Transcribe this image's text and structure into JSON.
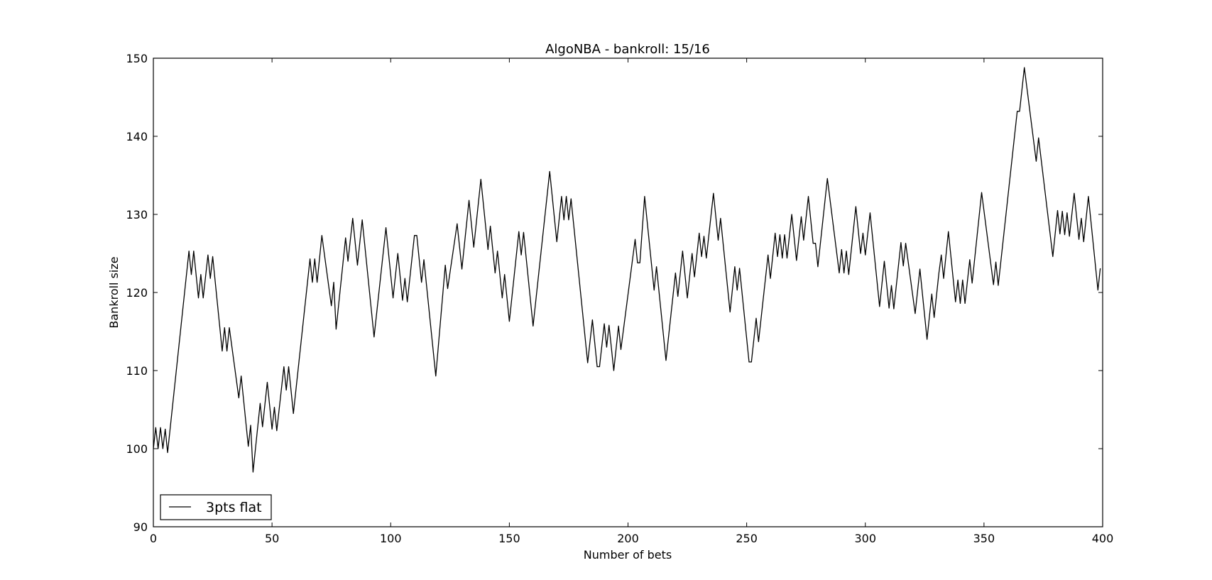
{
  "chart_data": {
    "type": "line",
    "title": "AlgoNBA - bankroll: 15/16",
    "xlabel": "Number of bets",
    "ylabel": "Bankroll size",
    "xlim": [
      0,
      400
    ],
    "ylim": [
      90,
      150
    ],
    "xticks": [
      0,
      50,
      100,
      150,
      200,
      250,
      300,
      350,
      400
    ],
    "yticks": [
      90,
      100,
      110,
      120,
      130,
      140,
      150
    ],
    "grid": false,
    "legend_position": "lower-left",
    "series": [
      {
        "name": "3pts flat",
        "color": "#000000",
        "points": [
          [
            0,
            100
          ],
          [
            1,
            102.7
          ],
          [
            2,
            100
          ],
          [
            3,
            102.7
          ],
          [
            4,
            100
          ],
          [
            5,
            102.5
          ],
          [
            6,
            99.5
          ],
          [
            15,
            125.3
          ],
          [
            16,
            122.3
          ],
          [
            17,
            125.3
          ],
          [
            19,
            119.3
          ],
          [
            20,
            122.3
          ],
          [
            21,
            119.3
          ],
          [
            23,
            124.8
          ],
          [
            24,
            121.8
          ],
          [
            25,
            124.6
          ],
          [
            29,
            112.5
          ],
          [
            30,
            115.5
          ],
          [
            31,
            112.5
          ],
          [
            32,
            115.5
          ],
          [
            36,
            106.5
          ],
          [
            37,
            109.3
          ],
          [
            40,
            100.3
          ],
          [
            41,
            103
          ],
          [
            42,
            97
          ],
          [
            45,
            105.8
          ],
          [
            46,
            102.8
          ],
          [
            48,
            108.5
          ],
          [
            50,
            102.5
          ],
          [
            51,
            105.3
          ],
          [
            52,
            102.3
          ],
          [
            55,
            110.5
          ],
          [
            56,
            107.5
          ],
          [
            57,
            110.5
          ],
          [
            59,
            104.5
          ],
          [
            66,
            124.3
          ],
          [
            67,
            121.3
          ],
          [
            68,
            124.3
          ],
          [
            69,
            121.3
          ],
          [
            71,
            127.3
          ],
          [
            75,
            118.3
          ],
          [
            76,
            121.3
          ],
          [
            77,
            115.3
          ],
          [
            81,
            127
          ],
          [
            82,
            124
          ],
          [
            84,
            129.5
          ],
          [
            86,
            123.5
          ],
          [
            88,
            129.3
          ],
          [
            93,
            114.3
          ],
          [
            98,
            128.3
          ],
          [
            101,
            119.3
          ],
          [
            103,
            125
          ],
          [
            105,
            119
          ],
          [
            106,
            121.8
          ],
          [
            107,
            118.8
          ],
          [
            110,
            127.3
          ],
          [
            111,
            127.3
          ],
          [
            113,
            121.3
          ],
          [
            114,
            124.2
          ],
          [
            119,
            109.3
          ],
          [
            123,
            123.5
          ],
          [
            124,
            120.5
          ],
          [
            128,
            128.8
          ],
          [
            130,
            123
          ],
          [
            133,
            131.8
          ],
          [
            135,
            125.8
          ],
          [
            138,
            134.5
          ],
          [
            141,
            125.5
          ],
          [
            142,
            128.5
          ],
          [
            144,
            122.5
          ],
          [
            145,
            125.3
          ],
          [
            147,
            119.3
          ],
          [
            148,
            122.3
          ],
          [
            150,
            116.3
          ],
          [
            154,
            127.8
          ],
          [
            155,
            124.8
          ],
          [
            156,
            127.7
          ],
          [
            160,
            115.7
          ],
          [
            167,
            135.5
          ],
          [
            170,
            126.5
          ],
          [
            172,
            132.3
          ],
          [
            173,
            129.3
          ],
          [
            174,
            132.3
          ],
          [
            175,
            129.3
          ],
          [
            176,
            132
          ],
          [
            183,
            111
          ],
          [
            185,
            116.5
          ],
          [
            187,
            110.5
          ],
          [
            188,
            110.5
          ],
          [
            190,
            116
          ],
          [
            191,
            113
          ],
          [
            192,
            115.8
          ],
          [
            194,
            110
          ],
          [
            196,
            115.7
          ],
          [
            197,
            112.7
          ],
          [
            203,
            126.8
          ],
          [
            204,
            123.8
          ],
          [
            205,
            123.8
          ],
          [
            207,
            132.3
          ],
          [
            211,
            120.3
          ],
          [
            212,
            123.3
          ],
          [
            216,
            111.3
          ],
          [
            220,
            122.5
          ],
          [
            221,
            119.5
          ],
          [
            223,
            125.3
          ],
          [
            225,
            119.3
          ],
          [
            227,
            125
          ],
          [
            228,
            122
          ],
          [
            230,
            127.6
          ],
          [
            231,
            124.6
          ],
          [
            232,
            127.2
          ],
          [
            233,
            124.4
          ],
          [
            236,
            132.7
          ],
          [
            238,
            126.7
          ],
          [
            239,
            129.5
          ],
          [
            243,
            117.5
          ],
          [
            245,
            123.3
          ],
          [
            246,
            120.3
          ],
          [
            247,
            123.1
          ],
          [
            251,
            111.1
          ],
          [
            252,
            111.1
          ],
          [
            254,
            116.7
          ],
          [
            255,
            113.7
          ],
          [
            259,
            124.8
          ],
          [
            260,
            121.8
          ],
          [
            262,
            127.6
          ],
          [
            263,
            124.6
          ],
          [
            264,
            127.4
          ],
          [
            265,
            124.4
          ],
          [
            266,
            127.4
          ],
          [
            267,
            124.4
          ],
          [
            269,
            130
          ],
          [
            271,
            124.1
          ],
          [
            273,
            129.7
          ],
          [
            274,
            126.7
          ],
          [
            276,
            132.3
          ],
          [
            278,
            126.3
          ],
          [
            279,
            126.3
          ],
          [
            280,
            123.3
          ],
          [
            284,
            134.6
          ],
          [
            289,
            122.5
          ],
          [
            290,
            125.5
          ],
          [
            291,
            122.5
          ],
          [
            292,
            125.3
          ],
          [
            293,
            122.3
          ],
          [
            296,
            131
          ],
          [
            298,
            125
          ],
          [
            299,
            127.6
          ],
          [
            300,
            124.8
          ],
          [
            302,
            130.2
          ],
          [
            306,
            118.2
          ],
          [
            308,
            124
          ],
          [
            310,
            118
          ],
          [
            311,
            120.9
          ],
          [
            312,
            117.9
          ],
          [
            315,
            126.4
          ],
          [
            316,
            123.4
          ],
          [
            317,
            126.3
          ],
          [
            321,
            117.3
          ],
          [
            323,
            123
          ],
          [
            326,
            114
          ],
          [
            328,
            119.8
          ],
          [
            329,
            116.8
          ],
          [
            331,
            122.5
          ],
          [
            332,
            124.8
          ],
          [
            333,
            121.8
          ],
          [
            335,
            127.8
          ],
          [
            338,
            118.8
          ],
          [
            339,
            121.6
          ],
          [
            340,
            118.6
          ],
          [
            341,
            121.6
          ],
          [
            342,
            118.6
          ],
          [
            344,
            124.2
          ],
          [
            345,
            121.2
          ],
          [
            349,
            132.8
          ],
          [
            354,
            121
          ],
          [
            355,
            123.9
          ],
          [
            356,
            120.9
          ],
          [
            364,
            143.2
          ],
          [
            365,
            143.2
          ],
          [
            367,
            148.8
          ],
          [
            372,
            136.8
          ],
          [
            373,
            139.8
          ],
          [
            379,
            124.6
          ],
          [
            381,
            130.5
          ],
          [
            382,
            127.5
          ],
          [
            383,
            130.4
          ],
          [
            384,
            127.4
          ],
          [
            385,
            130.2
          ],
          [
            386,
            127.2
          ],
          [
            388,
            132.7
          ],
          [
            390,
            126.8
          ],
          [
            391,
            129.5
          ],
          [
            392,
            126.5
          ],
          [
            394,
            132.3
          ],
          [
            398,
            120.3
          ],
          [
            399,
            123.1
          ]
        ]
      }
    ]
  }
}
